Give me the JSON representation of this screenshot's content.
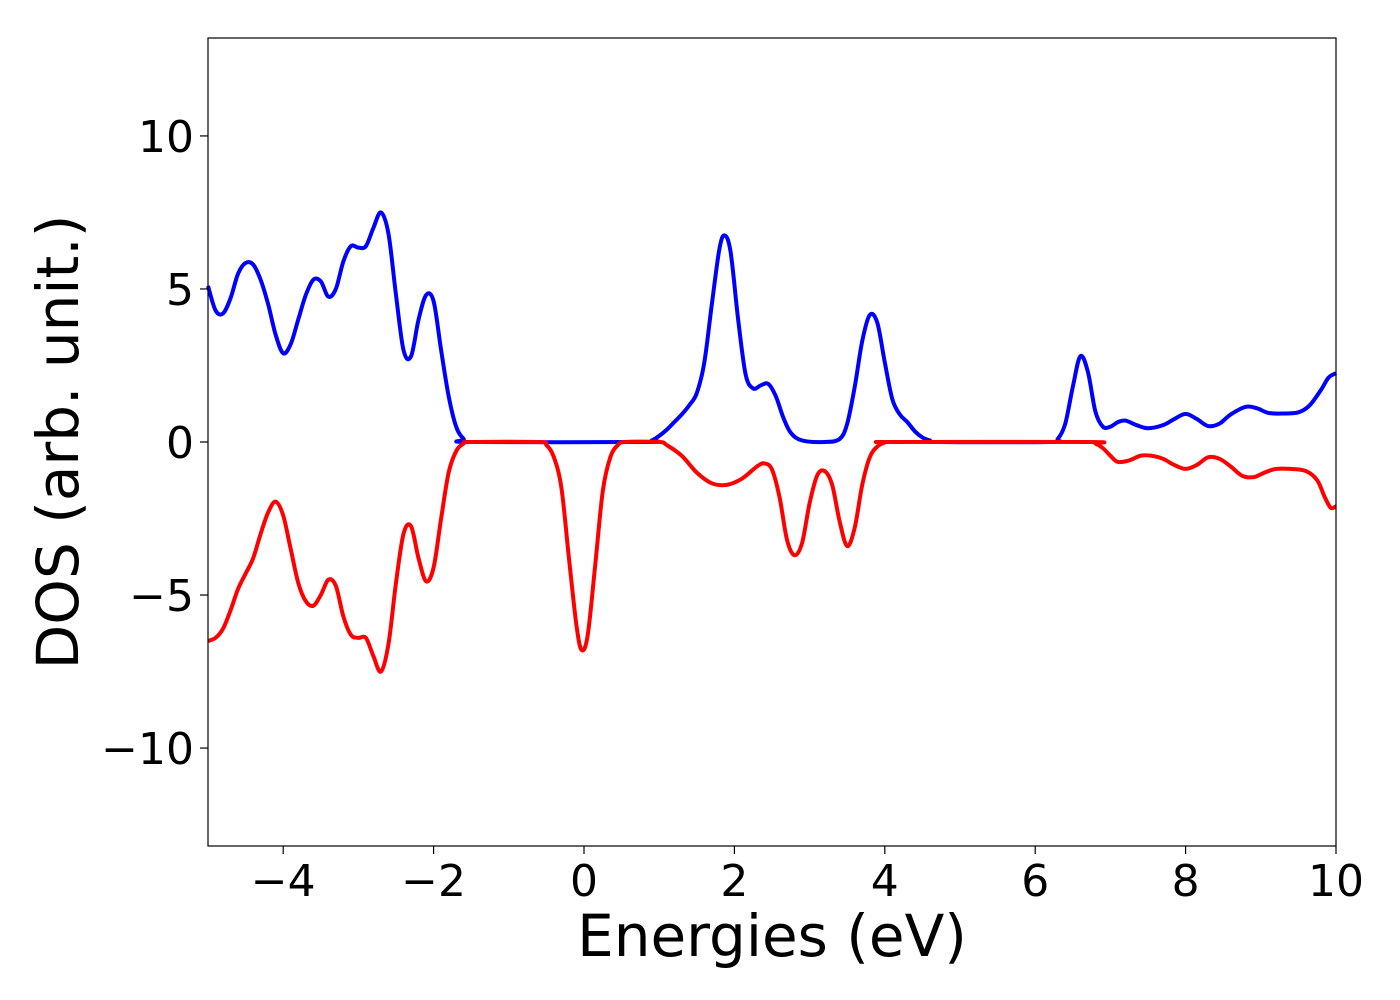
{
  "chart_data": {
    "type": "line",
    "title": "",
    "xlabel": "Energies (eV)",
    "ylabel": "DOS (arb. unit.)",
    "xlim": [
      -5,
      10
    ],
    "ylim": [
      -13.2,
      13.2
    ],
    "xticks": [
      -4,
      -2,
      0,
      2,
      4,
      6,
      8,
      10
    ],
    "xtick_labels": [
      "−4",
      "−2",
      "0",
      "2",
      "4",
      "6",
      "8",
      "10"
    ],
    "yticks": [
      -10,
      -5,
      0,
      5,
      10
    ],
    "ytick_labels": [
      "−10",
      "−5",
      "0",
      "5",
      "10"
    ],
    "grid": false,
    "legend": null,
    "series": [
      {
        "color": "#0000ff",
        "points": [
          [
            -5.0,
            5.1
          ],
          [
            -4.9,
            4.3
          ],
          [
            -4.8,
            4.2
          ],
          [
            -4.7,
            4.7
          ],
          [
            -4.6,
            5.5
          ],
          [
            -4.5,
            5.85
          ],
          [
            -4.4,
            5.8
          ],
          [
            -4.3,
            5.3
          ],
          [
            -4.2,
            4.5
          ],
          [
            -4.1,
            3.5
          ],
          [
            -4.0,
            2.9
          ],
          [
            -3.9,
            3.2
          ],
          [
            -3.8,
            4.0
          ],
          [
            -3.7,
            4.8
          ],
          [
            -3.6,
            5.3
          ],
          [
            -3.5,
            5.25
          ],
          [
            -3.4,
            4.75
          ],
          [
            -3.3,
            5.0
          ],
          [
            -3.2,
            5.9
          ],
          [
            -3.1,
            6.4
          ],
          [
            -3.0,
            6.35
          ],
          [
            -2.9,
            6.4
          ],
          [
            -2.8,
            7.0
          ],
          [
            -2.7,
            7.5
          ],
          [
            -2.6,
            6.8
          ],
          [
            -2.5,
            4.8
          ],
          [
            -2.4,
            3.0
          ],
          [
            -2.3,
            2.8
          ],
          [
            -2.2,
            4.0
          ],
          [
            -2.1,
            4.8
          ],
          [
            -2.0,
            4.6
          ],
          [
            -1.9,
            3.0
          ],
          [
            -1.8,
            1.5
          ],
          [
            -1.7,
            0.5
          ],
          [
            -1.6,
            0.1
          ],
          [
            -1.5,
            0.0
          ],
          [
            0.8,
            0.0
          ],
          [
            0.9,
            0.05
          ],
          [
            1.0,
            0.2
          ],
          [
            1.1,
            0.4
          ],
          [
            1.2,
            0.65
          ],
          [
            1.3,
            0.9
          ],
          [
            1.4,
            1.2
          ],
          [
            1.5,
            1.6
          ],
          [
            1.6,
            2.6
          ],
          [
            1.7,
            4.5
          ],
          [
            1.8,
            6.3
          ],
          [
            1.87,
            6.75
          ],
          [
            1.95,
            6.2
          ],
          [
            2.05,
            4.0
          ],
          [
            2.15,
            2.2
          ],
          [
            2.25,
            1.75
          ],
          [
            2.35,
            1.85
          ],
          [
            2.45,
            1.9
          ],
          [
            2.55,
            1.5
          ],
          [
            2.65,
            0.8
          ],
          [
            2.75,
            0.3
          ],
          [
            2.9,
            0.05
          ],
          [
            3.2,
            0.0
          ],
          [
            3.4,
            0.1
          ],
          [
            3.5,
            0.6
          ],
          [
            3.6,
            1.8
          ],
          [
            3.7,
            3.3
          ],
          [
            3.8,
            4.15
          ],
          [
            3.9,
            3.9
          ],
          [
            4.0,
            2.6
          ],
          [
            4.1,
            1.4
          ],
          [
            4.2,
            0.9
          ],
          [
            4.3,
            0.65
          ],
          [
            4.4,
            0.35
          ],
          [
            4.5,
            0.15
          ],
          [
            4.6,
            0.05
          ],
          [
            4.7,
            0.0
          ],
          [
            6.2,
            0.0
          ],
          [
            6.3,
            0.1
          ],
          [
            6.4,
            0.6
          ],
          [
            6.5,
            1.8
          ],
          [
            6.6,
            2.8
          ],
          [
            6.7,
            2.3
          ],
          [
            6.8,
            1.0
          ],
          [
            6.9,
            0.5
          ],
          [
            7.0,
            0.5
          ],
          [
            7.1,
            0.65
          ],
          [
            7.2,
            0.7
          ],
          [
            7.35,
            0.55
          ],
          [
            7.5,
            0.45
          ],
          [
            7.7,
            0.55
          ],
          [
            7.85,
            0.75
          ],
          [
            8.0,
            0.92
          ],
          [
            8.15,
            0.75
          ],
          [
            8.3,
            0.52
          ],
          [
            8.45,
            0.6
          ],
          [
            8.6,
            0.9
          ],
          [
            8.8,
            1.15
          ],
          [
            8.95,
            1.1
          ],
          [
            9.1,
            0.95
          ],
          [
            9.3,
            0.93
          ],
          [
            9.5,
            0.97
          ],
          [
            9.65,
            1.2
          ],
          [
            9.8,
            1.7
          ],
          [
            9.9,
            2.1
          ],
          [
            10.0,
            2.25
          ]
        ]
      },
      {
        "color": "#ff0000",
        "points": [
          [
            -5.0,
            -6.5
          ],
          [
            -4.9,
            -6.4
          ],
          [
            -4.8,
            -6.1
          ],
          [
            -4.7,
            -5.5
          ],
          [
            -4.6,
            -4.8
          ],
          [
            -4.5,
            -4.3
          ],
          [
            -4.4,
            -3.8
          ],
          [
            -4.3,
            -3.0
          ],
          [
            -4.2,
            -2.3
          ],
          [
            -4.1,
            -1.95
          ],
          [
            -4.0,
            -2.4
          ],
          [
            -3.9,
            -3.5
          ],
          [
            -3.8,
            -4.6
          ],
          [
            -3.7,
            -5.2
          ],
          [
            -3.6,
            -5.35
          ],
          [
            -3.5,
            -5.0
          ],
          [
            -3.4,
            -4.5
          ],
          [
            -3.3,
            -4.7
          ],
          [
            -3.2,
            -5.7
          ],
          [
            -3.1,
            -6.3
          ],
          [
            -3.0,
            -6.4
          ],
          [
            -2.9,
            -6.4
          ],
          [
            -2.8,
            -7.0
          ],
          [
            -2.7,
            -7.5
          ],
          [
            -2.6,
            -6.6
          ],
          [
            -2.5,
            -4.6
          ],
          [
            -2.4,
            -3.0
          ],
          [
            -2.3,
            -2.75
          ],
          [
            -2.2,
            -3.8
          ],
          [
            -2.1,
            -4.55
          ],
          [
            -2.0,
            -4.1
          ],
          [
            -1.9,
            -2.5
          ],
          [
            -1.8,
            -1.0
          ],
          [
            -1.7,
            -0.3
          ],
          [
            -1.6,
            -0.05
          ],
          [
            -1.5,
            0.0
          ],
          [
            -0.6,
            0.0
          ],
          [
            -0.5,
            -0.1
          ],
          [
            -0.4,
            -0.5
          ],
          [
            -0.3,
            -1.5
          ],
          [
            -0.2,
            -3.8
          ],
          [
            -0.1,
            -6.0
          ],
          [
            -0.03,
            -6.8
          ],
          [
            0.05,
            -6.3
          ],
          [
            0.15,
            -4.0
          ],
          [
            0.25,
            -1.6
          ],
          [
            0.35,
            -0.5
          ],
          [
            0.45,
            -0.1
          ],
          [
            0.55,
            0.0
          ],
          [
            1.0,
            0.0
          ],
          [
            1.1,
            -0.1
          ],
          [
            1.3,
            -0.45
          ],
          [
            1.5,
            -1.0
          ],
          [
            1.7,
            -1.35
          ],
          [
            1.9,
            -1.4
          ],
          [
            2.1,
            -1.2
          ],
          [
            2.3,
            -0.8
          ],
          [
            2.4,
            -0.7
          ],
          [
            2.5,
            -0.9
          ],
          [
            2.6,
            -1.8
          ],
          [
            2.7,
            -3.2
          ],
          [
            2.8,
            -3.7
          ],
          [
            2.9,
            -3.3
          ],
          [
            3.0,
            -2.0
          ],
          [
            3.1,
            -1.1
          ],
          [
            3.2,
            -0.95
          ],
          [
            3.3,
            -1.4
          ],
          [
            3.4,
            -2.6
          ],
          [
            3.5,
            -3.4
          ],
          [
            3.6,
            -2.8
          ],
          [
            3.7,
            -1.4
          ],
          [
            3.8,
            -0.5
          ],
          [
            3.9,
            -0.15
          ],
          [
            4.0,
            -0.02
          ],
          [
            4.1,
            0.0
          ],
          [
            6.7,
            0.0
          ],
          [
            6.8,
            -0.05
          ],
          [
            6.9,
            -0.2
          ],
          [
            7.0,
            -0.45
          ],
          [
            7.1,
            -0.65
          ],
          [
            7.25,
            -0.6
          ],
          [
            7.4,
            -0.45
          ],
          [
            7.55,
            -0.45
          ],
          [
            7.7,
            -0.55
          ],
          [
            7.85,
            -0.75
          ],
          [
            8.0,
            -0.88
          ],
          [
            8.15,
            -0.75
          ],
          [
            8.3,
            -0.5
          ],
          [
            8.45,
            -0.55
          ],
          [
            8.6,
            -0.8
          ],
          [
            8.75,
            -1.1
          ],
          [
            8.9,
            -1.15
          ],
          [
            9.05,
            -1.0
          ],
          [
            9.2,
            -0.88
          ],
          [
            9.4,
            -0.88
          ],
          [
            9.6,
            -0.95
          ],
          [
            9.75,
            -1.25
          ],
          [
            9.85,
            -1.8
          ],
          [
            9.93,
            -2.15
          ],
          [
            10.0,
            -2.1
          ]
        ]
      }
    ]
  }
}
